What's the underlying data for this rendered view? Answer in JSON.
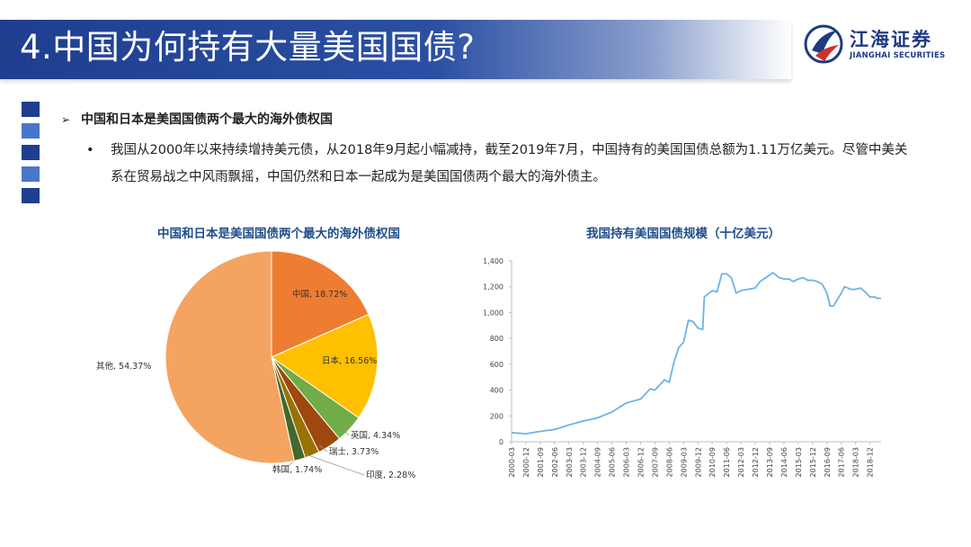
{
  "header": {
    "title": "4.中国为何持有大量美国国债?",
    "logo_cn": "江海证券",
    "logo_en": "JIANGHAI SECURITIES"
  },
  "content": {
    "bullet_heading": "中国和日本是美国国债两个最大的海外债权国",
    "bullet_text": "我国从2000年以来持续增持美元债，从2018年9月起小幅减持，截至2019年7月，中国持有的美国国债总额为1.11万亿美元。尽管中美关系在贸易战之中风雨飘摇，中国仍然和日本一起成为是美国国债两个最大的海外债主。"
  },
  "colors": {
    "banner": "#1f3e8f",
    "side_dark": "#1f3e8f",
    "side_light": "#4a76c9",
    "title_text": "#1f4e8c",
    "line": "#6cb4e4"
  },
  "chart_data": [
    {
      "type": "pie",
      "title": "中国和日本是美国国债两个最大的海外债权国",
      "slices": [
        {
          "label": "中国",
          "value": 18.72,
          "display": "中国, 18.72%",
          "color": "#ee7d31"
        },
        {
          "label": "日本",
          "value": 16.56,
          "display": "日本, 16.56%",
          "color": "#ffc000"
        },
        {
          "label": "英国",
          "value": 4.34,
          "display": "英国, 4.34%",
          "color": "#70ad47"
        },
        {
          "label": "瑞士",
          "value": 3.73,
          "display": "瑞士, 3.73%",
          "color": "#9e480e"
        },
        {
          "label": "印度",
          "value": 2.28,
          "display": "印度, 2.28%",
          "color": "#997300"
        },
        {
          "label": "韩国",
          "value": 1.74,
          "display": "韩国, 1.74%",
          "color": "#43682b"
        },
        {
          "label": "其他",
          "value": 54.37,
          "display": "其他, 54.37%",
          "color": "#f4a460"
        }
      ]
    },
    {
      "type": "line",
      "title": "我国持有美国国债规模（十亿美元）",
      "ylim": [
        0,
        1400
      ],
      "yticks": [
        0,
        200,
        400,
        600,
        800,
        1000,
        1200,
        1400
      ],
      "ytick_labels": [
        "0",
        "200",
        "400",
        "600",
        "800",
        "1,000",
        "1,200",
        "1,400"
      ],
      "xlim": [
        "2000-03",
        "2019-07"
      ],
      "xtick_labels": [
        "2000-03",
        "2000-12",
        "2001-09",
        "2002-06",
        "2003-03",
        "2003-12",
        "2004-09",
        "2005-06",
        "2006-03",
        "2006-12",
        "2007-09",
        "2008-06",
        "2009-03",
        "2009-12",
        "2010-09",
        "2011-06",
        "2012-03",
        "2012-12",
        "2013-09",
        "2014-06",
        "2015-03",
        "2015-12",
        "2016-09",
        "2017-06",
        "2018-03",
        "2018-12"
      ],
      "series": [
        {
          "points": [
            [
              "2000-03",
              70
            ],
            [
              "2000-12",
              62
            ],
            [
              "2001-09",
              80
            ],
            [
              "2002-06",
              95
            ],
            [
              "2003-03",
              130
            ],
            [
              "2003-12",
              160
            ],
            [
              "2004-09",
              185
            ],
            [
              "2005-06",
              230
            ],
            [
              "2006-03",
              300
            ],
            [
              "2006-12",
              330
            ],
            [
              "2007-06",
              410
            ],
            [
              "2007-09",
              400
            ],
            [
              "2008-03",
              480
            ],
            [
              "2008-06",
              460
            ],
            [
              "2008-09",
              620
            ],
            [
              "2008-12",
              730
            ],
            [
              "2009-03",
              770
            ],
            [
              "2009-06",
              940
            ],
            [
              "2009-09",
              930
            ],
            [
              "2009-12",
              880
            ],
            [
              "2010-03",
              870
            ],
            [
              "2010-04",
              1120
            ],
            [
              "2010-09",
              1170
            ],
            [
              "2010-12",
              1160
            ],
            [
              "2011-03",
              1300
            ],
            [
              "2011-06",
              1300
            ],
            [
              "2011-09",
              1270
            ],
            [
              "2011-12",
              1150
            ],
            [
              "2012-03",
              1170
            ],
            [
              "2012-12",
              1190
            ],
            [
              "2013-03",
              1240
            ],
            [
              "2013-09",
              1290
            ],
            [
              "2013-11",
              1310
            ],
            [
              "2014-03",
              1270
            ],
            [
              "2014-06",
              1260
            ],
            [
              "2014-09",
              1260
            ],
            [
              "2014-12",
              1240
            ],
            [
              "2015-03",
              1260
            ],
            [
              "2015-06",
              1270
            ],
            [
              "2015-09",
              1250
            ],
            [
              "2015-12",
              1250
            ],
            [
              "2016-03",
              1240
            ],
            [
              "2016-06",
              1220
            ],
            [
              "2016-09",
              1150
            ],
            [
              "2016-11",
              1050
            ],
            [
              "2017-01",
              1050
            ],
            [
              "2017-03",
              1090
            ],
            [
              "2017-06",
              1150
            ],
            [
              "2017-08",
              1200
            ],
            [
              "2017-12",
              1180
            ],
            [
              "2018-03",
              1180
            ],
            [
              "2018-06",
              1190
            ],
            [
              "2018-09",
              1160
            ],
            [
              "2018-12",
              1120
            ],
            [
              "2019-03",
              1120
            ],
            [
              "2019-05",
              1110
            ],
            [
              "2019-07",
              1110
            ]
          ]
        }
      ]
    }
  ]
}
